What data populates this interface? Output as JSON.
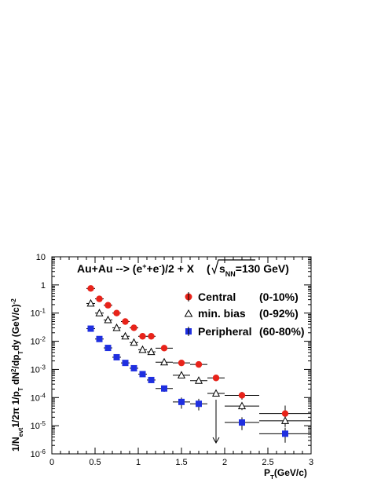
{
  "chart_data": {
    "type": "scatter",
    "title_parts": {
      "lead": "Au+Au --> (e",
      "sup1": "+",
      "mid1": "+e",
      "sup2": "-",
      "tail": ")/2 + X",
      "sqrt_prefix": "(",
      "sqrt_label": "s",
      "sqrt_sub": "NN",
      "sqrt_value": "=130 GeV)"
    },
    "xlabel": {
      "main": "P",
      "sub": "T",
      "unit": "(GeV/c)"
    },
    "ylabel": "1/N_evt 1/2π 1/p_T dN²/dp_T dy (GeV/c)^-2",
    "ylabel_parts": [
      {
        "t": "1/N"
      },
      {
        "t": "evt",
        "sub": true
      },
      {
        "t": "1/2π 1/p"
      },
      {
        "t": "T",
        "sub": true
      },
      {
        "t": " dN"
      },
      {
        "t": "2",
        "sup": true
      },
      {
        "t": "/dp"
      },
      {
        "t": "T",
        "sub": true
      },
      {
        "t": "dy (GeV/c)"
      },
      {
        "t": "-2",
        "sup": true
      }
    ],
    "xlim": [
      0,
      3
    ],
    "ylim": [
      1e-06,
      10
    ],
    "yscale": "log",
    "x_ticks": [
      {
        "value": 0,
        "label": "0"
      },
      {
        "value": 0.5,
        "label": "0.5"
      },
      {
        "value": 1,
        "label": "1"
      },
      {
        "value": 1.5,
        "label": "1.5"
      },
      {
        "value": 2,
        "label": "2"
      },
      {
        "value": 2.5,
        "label": "2.5"
      },
      {
        "value": 3,
        "label": "3"
      }
    ],
    "y_ticks": [
      {
        "value": 10,
        "base": "10",
        "exp": ""
      },
      {
        "value": 1,
        "base": "1",
        "exp": ""
      },
      {
        "value": 0.1,
        "base": "10",
        "exp": "-1"
      },
      {
        "value": 0.01,
        "base": "10",
        "exp": "-2"
      },
      {
        "value": 0.001,
        "base": "10",
        "exp": "-3"
      },
      {
        "value": 0.0001,
        "base": "10",
        "exp": "-4"
      },
      {
        "value": 1e-05,
        "base": "10",
        "exp": "-5"
      },
      {
        "value": 1e-06,
        "base": "10",
        "exp": "-6"
      }
    ],
    "series": [
      {
        "name": "Central",
        "range": "(0-10%)",
        "marker": "circle",
        "color": "#e8231a",
        "points": [
          {
            "x": 0.45,
            "xerr": 0.05,
            "y": 0.75,
            "ylo": 0.62,
            "yhi": 0.88
          },
          {
            "x": 0.55,
            "xerr": 0.05,
            "y": 0.32,
            "ylo": 0.27,
            "yhi": 0.37
          },
          {
            "x": 0.65,
            "xerr": 0.05,
            "y": 0.19,
            "ylo": 0.16,
            "yhi": 0.22
          },
          {
            "x": 0.75,
            "xerr": 0.05,
            "y": 0.1,
            "ylo": 0.085,
            "yhi": 0.115
          },
          {
            "x": 0.85,
            "xerr": 0.05,
            "y": 0.05,
            "ylo": 0.042,
            "yhi": 0.058
          },
          {
            "x": 0.95,
            "xerr": 0.05,
            "y": 0.03,
            "ylo": 0.025,
            "yhi": 0.035
          },
          {
            "x": 1.05,
            "xerr": 0.05,
            "y": 0.015,
            "ylo": 0.012,
            "yhi": 0.018
          },
          {
            "x": 1.15,
            "xerr": 0.05,
            "y": 0.015,
            "ylo": 0.012,
            "yhi": 0.018
          },
          {
            "x": 1.3,
            "xerr": 0.1,
            "y": 0.0057,
            "ylo": 0.0048,
            "yhi": 0.0067
          },
          {
            "x": 1.5,
            "xerr": 0.1,
            "y": 0.0017,
            "ylo": 0.0014,
            "yhi": 0.002
          },
          {
            "x": 1.7,
            "xerr": 0.1,
            "y": 0.0015,
            "ylo": 0.0012,
            "yhi": 0.0018
          },
          {
            "x": 1.9,
            "xerr": 0.1,
            "y": 0.0005,
            "ylo": 0.00038,
            "yhi": 0.00064
          },
          {
            "x": 2.2,
            "xerr": 0.2,
            "y": 0.00012,
            "ylo": 8.5e-05,
            "yhi": 0.00016
          },
          {
            "x": 2.7,
            "xerr": 0.3,
            "y": 2.7e-05,
            "ylo": 1.4e-05,
            "yhi": 5.2e-05
          }
        ]
      },
      {
        "name": "min. bias",
        "range": "(0-92%)",
        "marker": "open-triangle",
        "color": "#000000",
        "points": [
          {
            "x": 0.45,
            "xerr": 0.05,
            "y": 0.22,
            "ylo": 0.19,
            "yhi": 0.25
          },
          {
            "x": 0.55,
            "xerr": 0.05,
            "y": 0.1,
            "ylo": 0.088,
            "yhi": 0.114
          },
          {
            "x": 0.65,
            "xerr": 0.05,
            "y": 0.057,
            "ylo": 0.049,
            "yhi": 0.065
          },
          {
            "x": 0.75,
            "xerr": 0.05,
            "y": 0.03,
            "ylo": 0.026,
            "yhi": 0.034
          },
          {
            "x": 0.85,
            "xerr": 0.05,
            "y": 0.015,
            "ylo": 0.013,
            "yhi": 0.017
          },
          {
            "x": 0.95,
            "xerr": 0.05,
            "y": 0.009,
            "ylo": 0.0078,
            "yhi": 0.0102
          },
          {
            "x": 1.05,
            "xerr": 0.05,
            "y": 0.005,
            "ylo": 0.0043,
            "yhi": 0.0057
          },
          {
            "x": 1.15,
            "xerr": 0.05,
            "y": 0.0042,
            "ylo": 0.0036,
            "yhi": 0.0048
          },
          {
            "x": 1.3,
            "xerr": 0.1,
            "y": 0.0018,
            "ylo": 0.0015,
            "yhi": 0.0021
          },
          {
            "x": 1.5,
            "xerr": 0.1,
            "y": 0.00062,
            "ylo": 0.00052,
            "yhi": 0.00072
          },
          {
            "x": 1.7,
            "xerr": 0.1,
            "y": 0.0004,
            "ylo": 0.00033,
            "yhi": 0.00047
          },
          {
            "x": 1.9,
            "xerr": 0.1,
            "y": 0.00014,
            "ylo": 0.00011,
            "yhi": 0.00017
          },
          {
            "x": 2.2,
            "xerr": 0.2,
            "y": 5e-05,
            "ylo": 3.6e-05,
            "yhi": 6.4e-05
          },
          {
            "x": 2.7,
            "xerr": 0.3,
            "y": 1.5e-05,
            "ylo": 9e-06,
            "yhi": 2.1e-05
          }
        ]
      },
      {
        "name": "Peripheral",
        "range": "(60-80%)",
        "marker": "square",
        "color": "#1f2fe0",
        "points": [
          {
            "x": 0.45,
            "xerr": 0.05,
            "y": 0.028,
            "ylo": 0.024,
            "yhi": 0.032
          },
          {
            "x": 0.55,
            "xerr": 0.05,
            "y": 0.012,
            "ylo": 0.01,
            "yhi": 0.014
          },
          {
            "x": 0.65,
            "xerr": 0.05,
            "y": 0.0058,
            "ylo": 0.005,
            "yhi": 0.0066
          },
          {
            "x": 0.75,
            "xerr": 0.05,
            "y": 0.0027,
            "ylo": 0.0023,
            "yhi": 0.0031
          },
          {
            "x": 0.85,
            "xerr": 0.05,
            "y": 0.0017,
            "ylo": 0.0014,
            "yhi": 0.002
          },
          {
            "x": 0.95,
            "xerr": 0.05,
            "y": 0.0011,
            "ylo": 0.00092,
            "yhi": 0.0013
          },
          {
            "x": 1.05,
            "xerr": 0.05,
            "y": 0.00068,
            "ylo": 0.00056,
            "yhi": 0.0008
          },
          {
            "x": 1.15,
            "xerr": 0.05,
            "y": 0.00042,
            "ylo": 0.00033,
            "yhi": 0.00051
          },
          {
            "x": 1.3,
            "xerr": 0.1,
            "y": 0.00021,
            "ylo": 0.00016,
            "yhi": 0.00026
          },
          {
            "x": 1.5,
            "xerr": 0.1,
            "y": 7e-05,
            "ylo": 4e-05,
            "yhi": 0.0001
          },
          {
            "x": 1.7,
            "xerr": 0.1,
            "y": 6e-05,
            "ylo": 3.5e-05,
            "yhi": 9e-05
          },
          {
            "x": 2.2,
            "xerr": 0.2,
            "y": 1.3e-05,
            "ylo": 7e-06,
            "yhi": 2e-05
          },
          {
            "x": 2.7,
            "xerr": 0.3,
            "y": 5.2e-06,
            "ylo": 2.5e-06,
            "yhi": 8.5e-06
          }
        ],
        "upper_limits": [
          {
            "x": 1.9,
            "y": 0.00014
          }
        ]
      }
    ],
    "legend_placement": "right"
  }
}
